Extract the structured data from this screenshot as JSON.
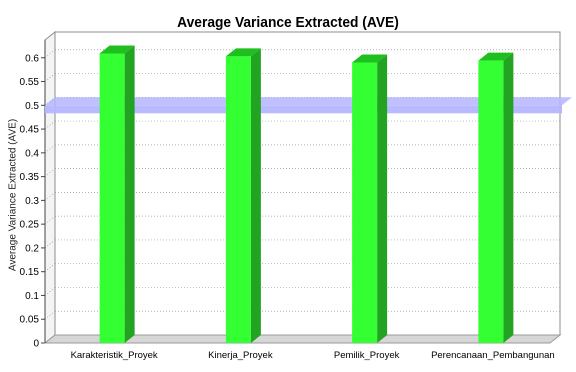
{
  "chart_data": {
    "type": "bar",
    "title": "Average Variance Extracted (AVE)",
    "xlabel": "",
    "ylabel": "Average Variance Extracted (AVE)",
    "ylim": [
      0,
      0.65
    ],
    "yticks": [
      0,
      0.05,
      0.1,
      0.15,
      0.2,
      0.25,
      0.3,
      0.35,
      0.4,
      0.45,
      0.5,
      0.55,
      0.6
    ],
    "categories": [
      "Karakteristik_Proyek",
      "Kinerja_Proyek",
      "Pemilik_Proyek",
      "Perencanaan_Pembangunan"
    ],
    "values": [
      0.609,
      0.603,
      0.59,
      0.594
    ],
    "reference_line": 0.5,
    "grid": true,
    "legend": "none",
    "colors": {
      "bar_front": "#33ff33",
      "bar_side": "#22a322",
      "bar_top": "#1fbf1f",
      "reference_band": "#b5b5ff",
      "floor": "#d6d6d6",
      "grid": "#9a9a9a"
    }
  }
}
